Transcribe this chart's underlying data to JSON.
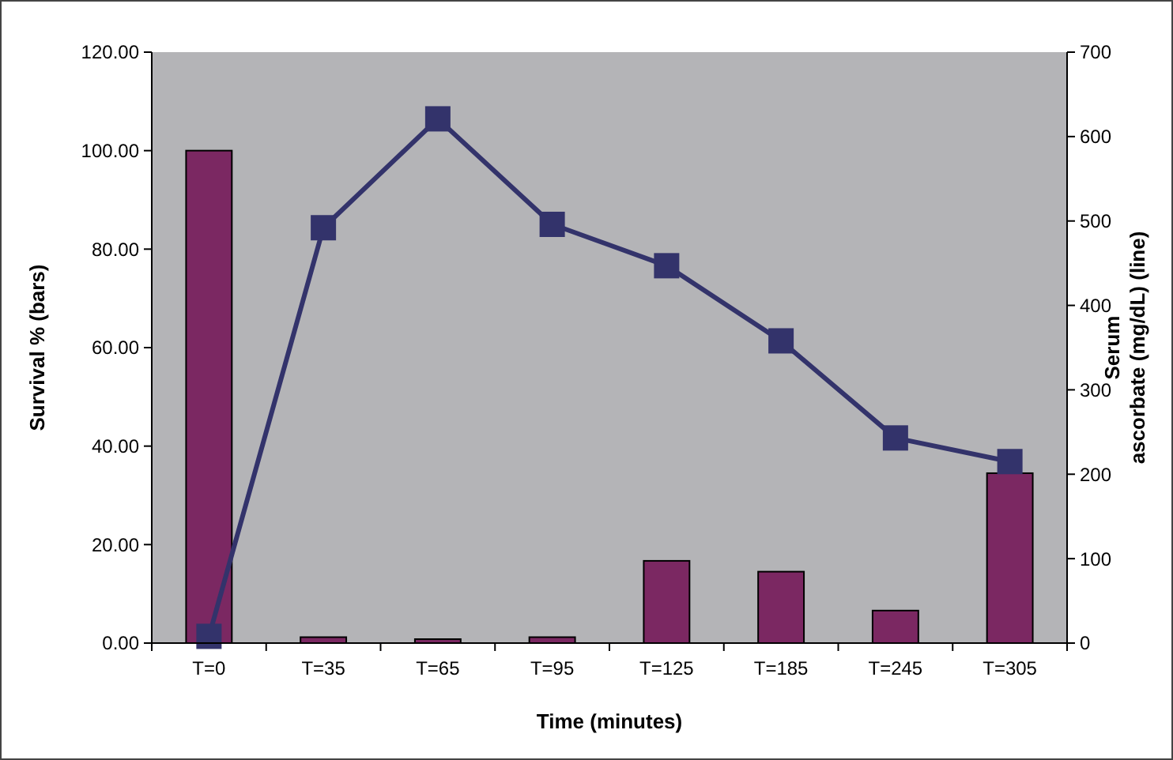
{
  "chart_data": {
    "type": "bar",
    "xlabel": "Time (minutes)",
    "ylabel": "Survival % (bars)",
    "y2label": "Serum\nascorbate (mg/dL) (line)",
    "categories": [
      "T=0",
      "T=35",
      "T=65",
      "T=95",
      "T=125",
      "T=185",
      "T=245",
      "T=305"
    ],
    "series": [
      {
        "color": "#7b2862",
        "values": [
          100,
          1.2,
          0.8,
          1.2,
          16.7,
          14.5,
          6.6,
          34.5
        ]
      },
      {
        "type": "line",
        "axis": "y2",
        "color": "#33336b",
        "marker": "square",
        "values": [
          8,
          492,
          621,
          496,
          447,
          358,
          243,
          215
        ]
      }
    ],
    "ylim": [
      0,
      120
    ],
    "yticks": [
      {
        "value": 0,
        "label": "0.00"
      },
      {
        "value": 20,
        "label": "20.00"
      },
      {
        "value": 40,
        "label": "40.00"
      },
      {
        "value": 60,
        "label": "60.00"
      },
      {
        "value": 80,
        "label": "80.00"
      },
      {
        "value": 100,
        "label": "100.00"
      },
      {
        "value": 120,
        "label": "120.00"
      }
    ],
    "y2lim": [
      0,
      700
    ],
    "y2ticks": [
      0,
      100,
      200,
      300,
      400,
      500,
      600,
      700
    ],
    "grid": false
  }
}
